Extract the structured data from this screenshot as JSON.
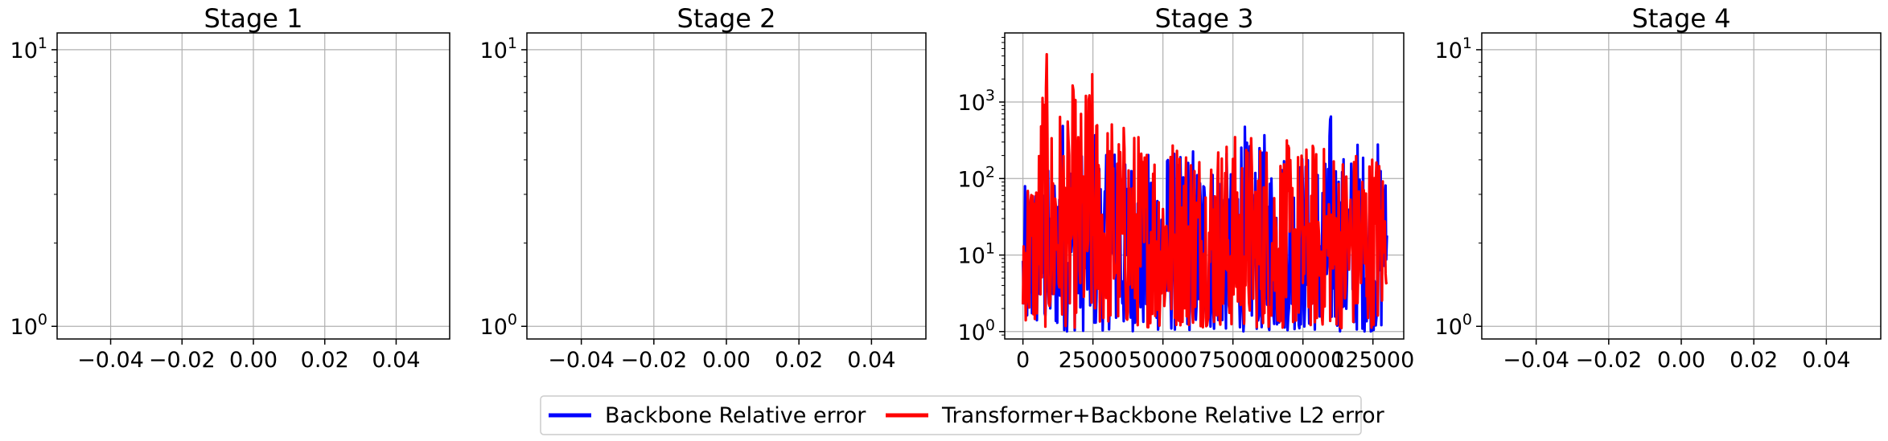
{
  "chart_data": [
    {
      "type": "line",
      "title": "Stage 1",
      "yscale": "log",
      "ylim": [
        0.9,
        11.5
      ],
      "xlim": [
        -0.055,
        0.055
      ],
      "xticks": [
        -0.04,
        -0.02,
        0.0,
        0.02,
        0.04
      ],
      "xtick_labels": [
        "−0.04",
        "−0.02",
        "0.00",
        "0.02",
        "0.04"
      ],
      "yticks": [
        1,
        10
      ],
      "ytick_labels": [
        "10^0",
        "10^1"
      ],
      "grid": true,
      "series": []
    },
    {
      "type": "line",
      "title": "Stage 2",
      "yscale": "log",
      "ylim": [
        0.9,
        11.5
      ],
      "xlim": [
        -0.055,
        0.055
      ],
      "xticks": [
        -0.04,
        -0.02,
        0.0,
        0.02,
        0.04
      ],
      "xtick_labels": [
        "−0.04",
        "−0.02",
        "0.00",
        "0.02",
        "0.04"
      ],
      "yticks": [
        1,
        10
      ],
      "ytick_labels": [
        "10^0",
        "10^1"
      ],
      "grid": true,
      "series": []
    },
    {
      "type": "line",
      "title": "Stage 3",
      "yscale": "log",
      "ylim": [
        0.8,
        8000
      ],
      "xlim": [
        -6500,
        136000
      ],
      "xticks": [
        0,
        25000,
        50000,
        75000,
        100000,
        125000
      ],
      "xtick_labels": [
        "0",
        "25000",
        "50000",
        "75000",
        "100000",
        "125000"
      ],
      "yticks": [
        1,
        10,
        100,
        1000
      ],
      "ytick_labels": [
        "10^0",
        "10^1",
        "10^2",
        "10^3"
      ],
      "grid": true,
      "n_points": 130000,
      "series": [
        {
          "name": "Backbone Relative error",
          "color": "#0000ff",
          "x": [
            0,
            2000,
            4000,
            6000,
            8000,
            10000,
            12000,
            14000,
            16000,
            18000,
            20000,
            22000,
            24000,
            26000,
            28000,
            30000,
            32000,
            34000,
            36000,
            38000,
            40000,
            42000,
            44000,
            46000,
            48000,
            50000,
            52000,
            54000,
            56000,
            58000,
            60000,
            62000,
            64000,
            66000,
            68000,
            70000,
            72000,
            74000,
            76000,
            78000,
            80000,
            82000,
            84000,
            86000,
            88000,
            90000,
            92000,
            94000,
            96000,
            98000,
            100000,
            102000,
            104000,
            106000,
            108000,
            110000,
            112000,
            114000,
            116000,
            118000,
            120000,
            122000,
            124000,
            126000,
            128000,
            130000
          ],
          "band_low": [
            1.0,
            1.0,
            1.0,
            1.1,
            1.0,
            1.0,
            1.0,
            1.0,
            1.0,
            1.0,
            1.0,
            1.0,
            1.0,
            1.0,
            1.0,
            1.1,
            1.0,
            1.0,
            1.0,
            1.0,
            1.0,
            1.0,
            1.1,
            1.0,
            1.0,
            1.0,
            1.0,
            1.0,
            1.0,
            1.0,
            1.0,
            1.0,
            1.0,
            1.0,
            1.0,
            1.0,
            1.0,
            1.0,
            1.0,
            1.0,
            1.0,
            1.1,
            1.0,
            1.0,
            1.0,
            1.0,
            1.0,
            1.0,
            1.1,
            1.0,
            1.0,
            1.0,
            1.0,
            1.0,
            1.0,
            1.0,
            1.0,
            1.0,
            1.0,
            1.0,
            1.0,
            1.0,
            1.0,
            1.0,
            1.0,
            5.0
          ],
          "band_high": [
            40,
            150,
            90,
            250,
            180,
            120,
            300,
            800,
            700,
            400,
            300,
            500,
            900,
            600,
            250,
            200,
            400,
            350,
            150,
            300,
            250,
            200,
            180,
            350,
            250,
            200,
            300,
            250,
            200,
            220,
            400,
            200,
            250,
            300,
            200,
            350,
            250,
            180,
            200,
            900,
            350,
            250,
            200,
            450,
            250,
            300,
            500,
            200,
            250,
            300,
            280,
            220,
            250,
            300,
            200,
            900,
            350,
            250,
            200,
            300,
            400,
            250,
            250,
            350,
            300,
            60
          ]
        },
        {
          "name": "Transformer+Backbone Relative L2 error",
          "color": "#ff0000",
          "x": [
            0,
            2000,
            4000,
            6000,
            8000,
            10000,
            12000,
            14000,
            16000,
            18000,
            20000,
            22000,
            24000,
            26000,
            28000,
            30000,
            32000,
            34000,
            36000,
            38000,
            40000,
            42000,
            44000,
            46000,
            48000,
            50000,
            52000,
            54000,
            56000,
            58000,
            60000,
            62000,
            64000,
            66000,
            68000,
            70000,
            72000,
            74000,
            76000,
            78000,
            80000,
            82000,
            84000,
            86000,
            88000,
            90000,
            92000,
            94000,
            96000,
            98000,
            100000,
            102000,
            104000,
            106000,
            108000,
            110000,
            112000,
            114000,
            116000,
            118000,
            120000,
            122000,
            124000,
            126000,
            128000,
            130000
          ],
          "band_low": [
            1.5,
            1.2,
            1.1,
            1.2,
            1.1,
            1.1,
            1.2,
            1.1,
            1.2,
            1.1,
            1.1,
            1.2,
            1.1,
            1.2,
            1.1,
            1.2,
            1.1,
            1.1,
            1.2,
            1.1,
            1.2,
            1.1,
            1.1,
            1.2,
            1.1,
            1.2,
            1.1,
            1.1,
            1.2,
            1.1,
            1.2,
            1.1,
            1.1,
            1.2,
            1.1,
            1.2,
            1.1,
            1.1,
            1.2,
            1.1,
            1.2,
            1.1,
            1.1,
            1.2,
            1.1,
            1.2,
            1.1,
            1.1,
            1.2,
            1.1,
            1.2,
            1.1,
            1.1,
            1.2,
            1.1,
            1.2,
            1.1,
            1.1,
            1.2,
            1.1,
            1.2,
            1.1,
            1.1,
            1.2,
            1.1,
            4.0
          ],
          "band_high": [
            60,
            200,
            150,
            500,
            5500,
            700,
            1500,
            900,
            600,
            2000,
            800,
            1200,
            3800,
            1100,
            800,
            700,
            900,
            500,
            600,
            700,
            500,
            400,
            450,
            600,
            400,
            380,
            500,
            420,
            450,
            400,
            500,
            350,
            420,
            380,
            400,
            420,
            380,
            350,
            420,
            400,
            380,
            500,
            400,
            380,
            420,
            300,
            350,
            320,
            350,
            280,
            320,
            300,
            350,
            280,
            300,
            320,
            300,
            280,
            300,
            280,
            300,
            320,
            280,
            300,
            280,
            40
          ]
        }
      ]
    },
    {
      "type": "line",
      "title": "Stage 4",
      "yscale": "log",
      "ylim": [
        0.9,
        11.5
      ],
      "xlim": [
        -0.055,
        0.055
      ],
      "xticks": [
        -0.04,
        -0.02,
        0.0,
        0.02,
        0.04
      ],
      "xtick_labels": [
        "−0.04",
        "−0.02",
        "0.00",
        "0.02",
        "0.04"
      ],
      "yticks": [
        1,
        10
      ],
      "ytick_labels": [
        "10^0",
        "10^1"
      ],
      "grid": true,
      "series": []
    }
  ],
  "legend": {
    "placement": "bottom-center",
    "entries": [
      {
        "label": "Backbone Relative error",
        "color": "#0000ff"
      },
      {
        "label": "Transformer+Backbone Relative L2 error",
        "color": "#ff0000"
      }
    ]
  }
}
